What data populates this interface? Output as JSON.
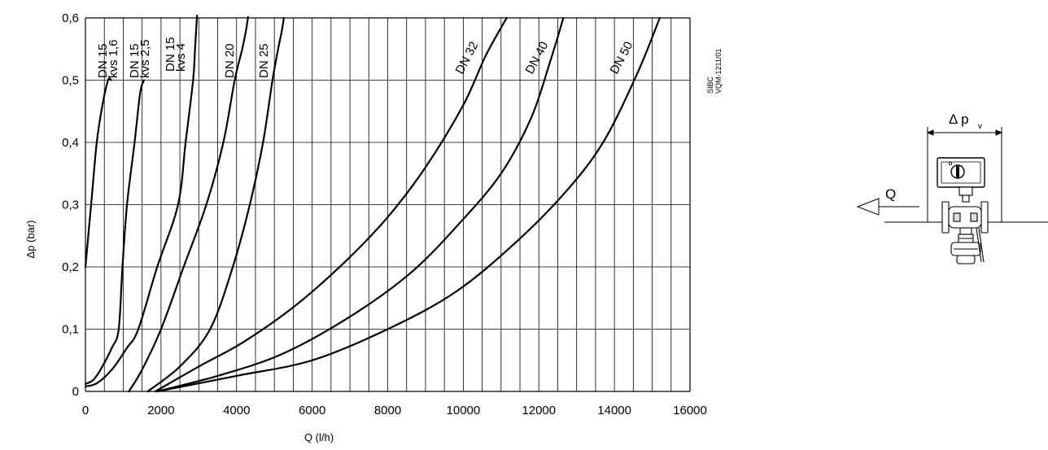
{
  "chart_data": {
    "type": "line",
    "title": "",
    "xlabel": "Q  (l/h)",
    "ylabel": "Δp  (bar)",
    "xlim": [
      0,
      16000
    ],
    "ylim": [
      0,
      0.6
    ],
    "grid": true,
    "x_ticks": [
      "0",
      "2000",
      "4000",
      "6000",
      "8000",
      "10000",
      "12000",
      "14000",
      "16000"
    ],
    "y_ticks": [
      "0",
      "0,1",
      "0,2",
      "0,3",
      "0,4",
      "0,5",
      "0,6"
    ],
    "series": [
      {
        "name": "DN 15",
        "sub": "kvs 1,6",
        "x": [
          0,
          150,
          300,
          450,
          600,
          680
        ],
        "y": [
          0.2,
          0.3,
          0.4,
          0.46,
          0.5,
          0.5
        ]
      },
      {
        "name": "DN 15",
        "sub": "kvs 2,5",
        "x": [
          0,
          200,
          400,
          700,
          880,
          980,
          1100,
          1300,
          1450,
          1550
        ],
        "y": [
          0.012,
          0.018,
          0.035,
          0.07,
          0.1,
          0.2,
          0.3,
          0.4,
          0.48,
          0.5
        ]
      },
      {
        "name": "DN 15",
        "sub": "kvs 4",
        "x": [
          0,
          300,
          700,
          1100,
          1400,
          1900,
          2450,
          2650,
          2850,
          2900,
          2950,
          2950
        ],
        "y": [
          0.008,
          0.013,
          0.035,
          0.07,
          0.1,
          0.2,
          0.3,
          0.4,
          0.5,
          0.55,
          0.6,
          0.6
        ]
      },
      {
        "name": "DN 20",
        "sub": "",
        "x": [
          1150,
          1500,
          2000,
          2600,
          3200,
          3650,
          3950,
          4150,
          4250,
          4300,
          4300
        ],
        "y": [
          0,
          0.035,
          0.1,
          0.2,
          0.3,
          0.4,
          0.5,
          0.55,
          0.58,
          0.6,
          0.6
        ]
      },
      {
        "name": "DN 25",
        "sub": "",
        "x": [
          1650,
          2500,
          3300,
          3900,
          4350,
          4700,
          4950,
          5100,
          5200,
          5250
        ],
        "y": [
          0,
          0.04,
          0.1,
          0.2,
          0.3,
          0.4,
          0.5,
          0.55,
          0.58,
          0.6
        ]
      },
      {
        "name": "DN 32",
        "sub": "",
        "x": [
          1850,
          3000,
          4200,
          5600,
          6900,
          8000,
          9000,
          10000,
          10600,
          11150
        ],
        "y": [
          0,
          0.04,
          0.08,
          0.14,
          0.21,
          0.28,
          0.36,
          0.46,
          0.54,
          0.6
        ]
      },
      {
        "name": "DN 40",
        "sub": "",
        "x": [
          1900,
          3500,
          5200,
          7000,
          8600,
          9900,
          11000,
          11800,
          12300,
          12650
        ],
        "y": [
          0,
          0.025,
          0.06,
          0.12,
          0.19,
          0.27,
          0.35,
          0.44,
          0.53,
          0.6
        ]
      },
      {
        "name": "DN 50",
        "sub": "",
        "x": [
          1900,
          4000,
          6000,
          8000,
          9800,
          11400,
          12700,
          13700,
          14600,
          15200
        ],
        "y": [
          0,
          0.025,
          0.05,
          0.1,
          0.16,
          0.24,
          0.32,
          0.4,
          0.51,
          0.6
        ]
      }
    ]
  },
  "side_code": [
    "SIBC",
    "VQM-1211/01"
  ],
  "diagram": {
    "dp_label": "Δ p",
    "dp_sub": "v",
    "flow_label": "Q"
  }
}
